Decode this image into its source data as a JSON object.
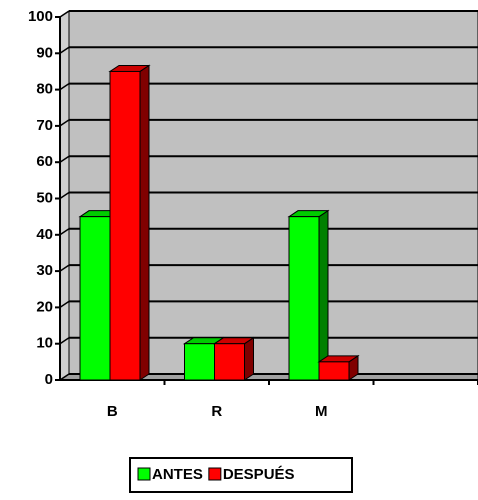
{
  "chart_data": {
    "type": "bar3d",
    "categories": [
      "B",
      "R",
      "M",
      null
    ],
    "series": [
      {
        "name": "ANTES",
        "color": "#00ff00",
        "values": [
          45,
          10,
          45,
          null
        ]
      },
      {
        "name": "DESPUÉS",
        "color": "#ff0000",
        "values": [
          85,
          10,
          5,
          null
        ]
      }
    ],
    "ylim": [
      0,
      100
    ],
    "yticks": [
      0,
      10,
      20,
      30,
      40,
      50,
      60,
      70,
      80,
      90,
      100
    ],
    "grid": true,
    "legend": "bottom"
  }
}
